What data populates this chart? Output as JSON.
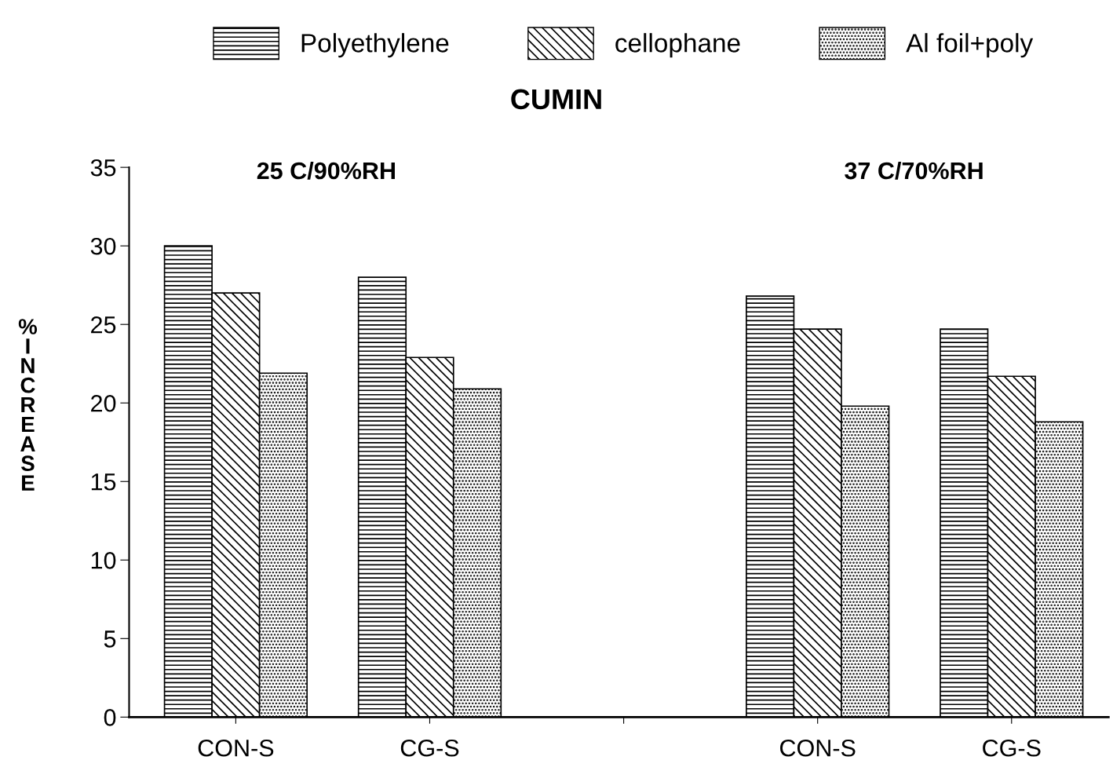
{
  "chart_data": {
    "type": "bar",
    "title": "CUMIN",
    "ylabel": "%\nI\nN\nC\nR\nE\nA\nS\nE",
    "categories": [
      "CON-S",
      "CG-S",
      null,
      "CON-S",
      "CG-S"
    ],
    "series": [
      {
        "name": "Polyethylene",
        "color": "#000000",
        "values": [
          30,
          28,
          null,
          26.8,
          24.7
        ]
      },
      {
        "name": "cellophane",
        "color": "#000000",
        "values": [
          27,
          22.9,
          null,
          24.7,
          21.7
        ]
      },
      {
        "name": "Al foil+poly",
        "color": "#000000",
        "values": [
          21.9,
          20.9,
          null,
          19.8,
          18.8
        ]
      }
    ],
    "ylim": [
      0,
      35
    ],
    "yticks": [
      0,
      5,
      10,
      15,
      20,
      25,
      30,
      35
    ],
    "annotations": [
      "25 C/90%RH",
      "37 C/70%RH"
    ],
    "legend": "top",
    "grid": false
  }
}
